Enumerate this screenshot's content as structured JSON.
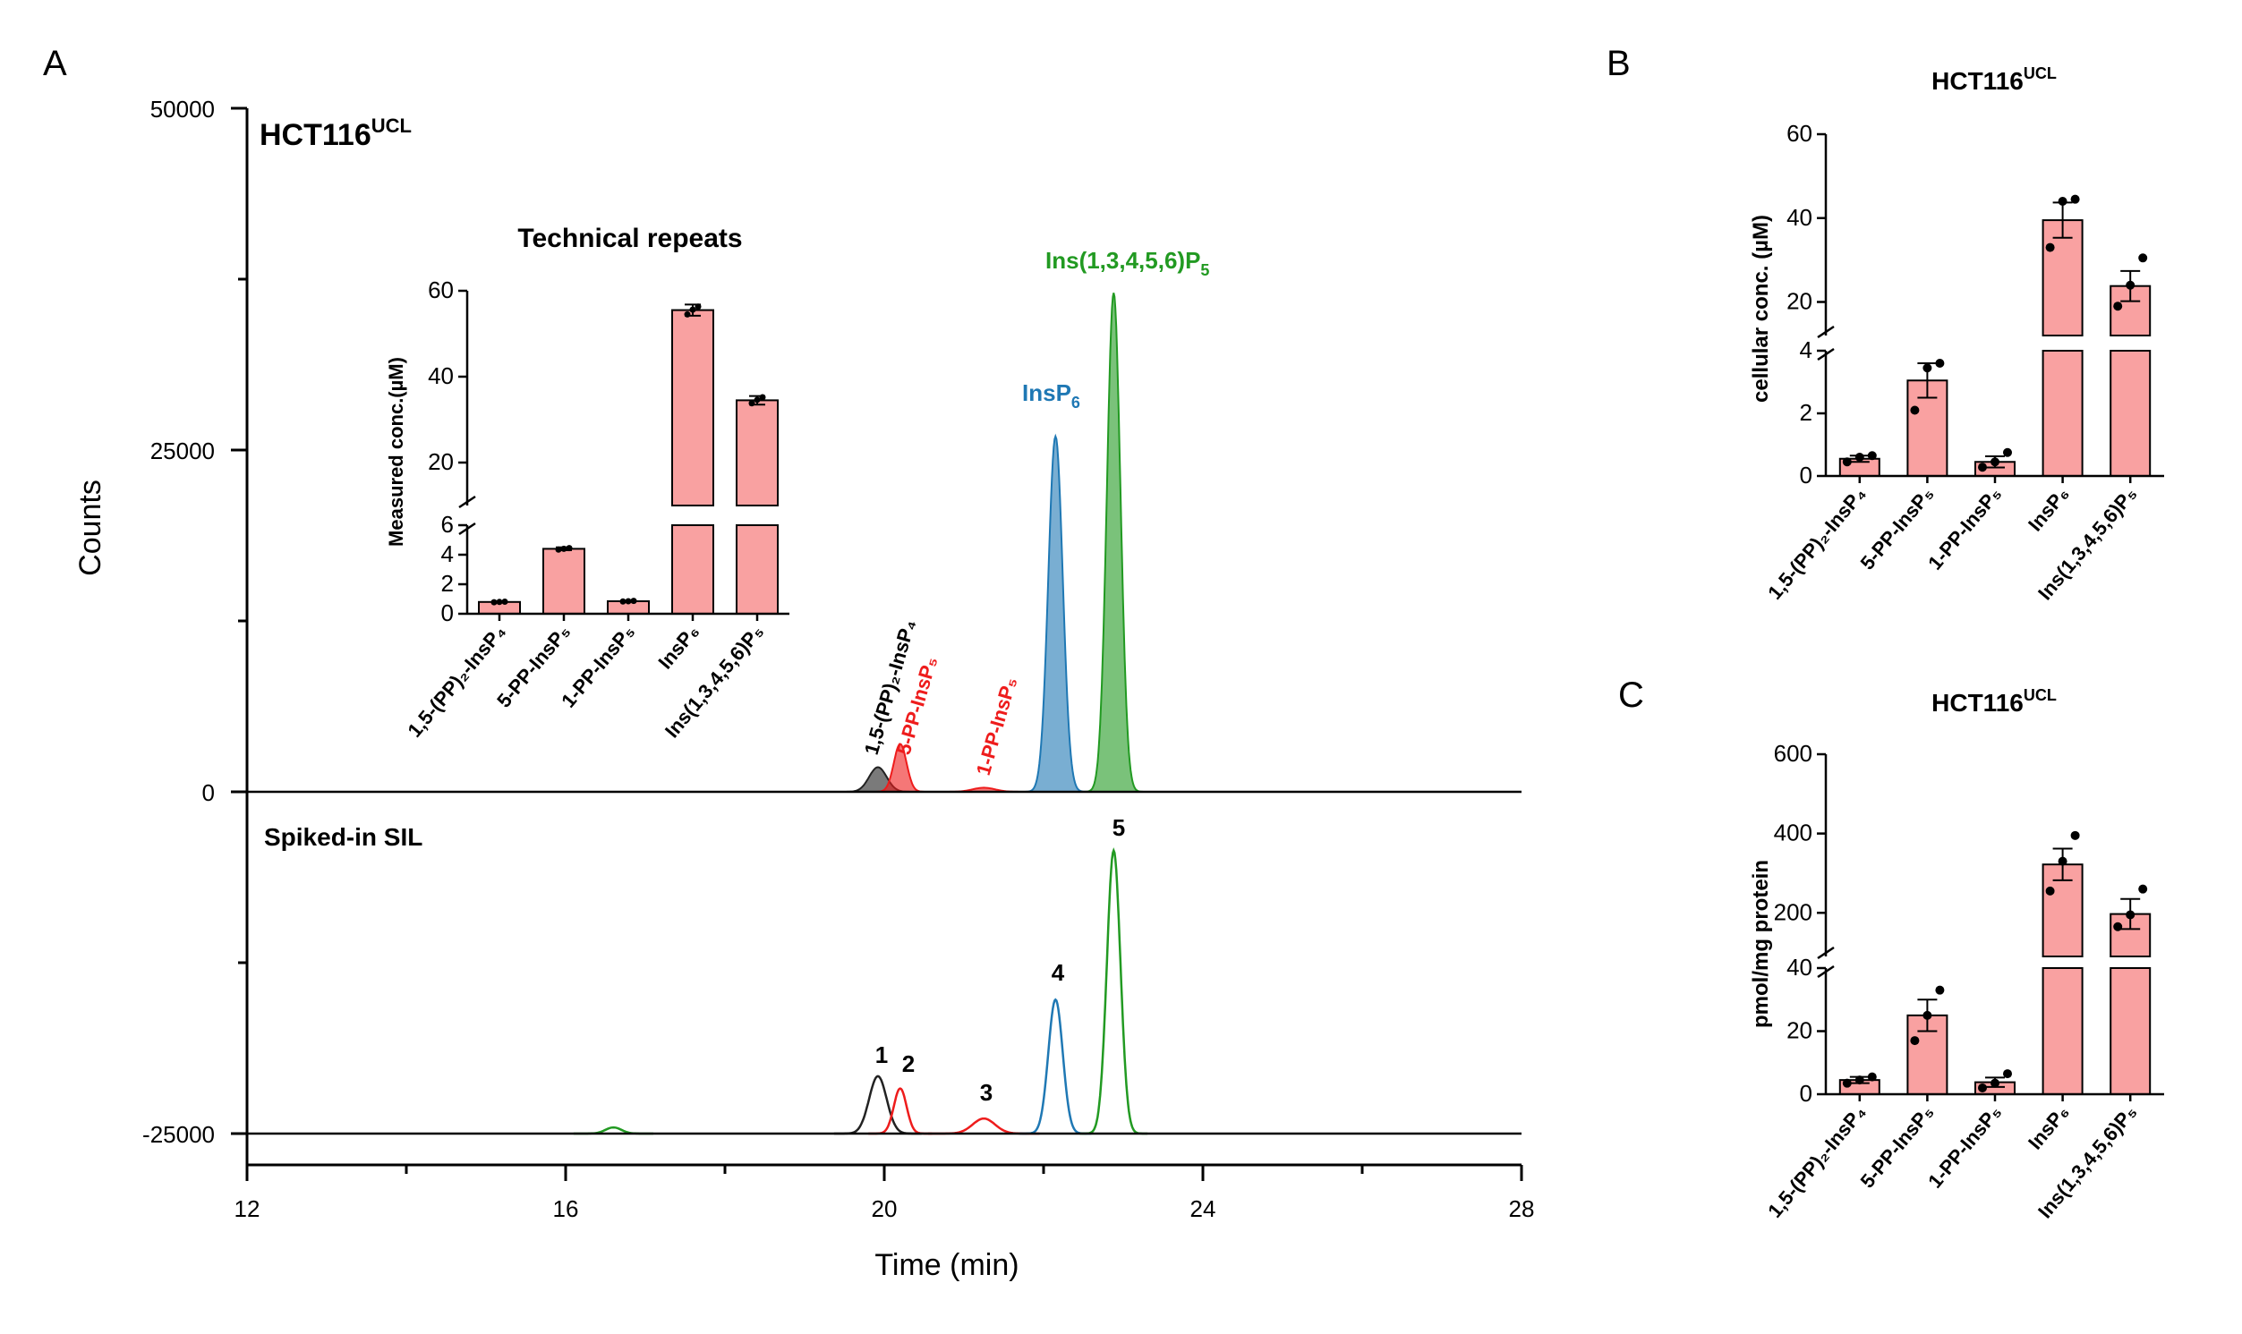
{
  "panel_labels": {
    "a": "A",
    "b": "B",
    "c": "C"
  },
  "colors": {
    "bar_fill": "#f9a1a1",
    "peak_1": "#222222",
    "peak_2": "#ee1c1c",
    "peak_3": "#ee1c1c",
    "peak_4": "#1f78b4",
    "peak_5": "#229a22"
  },
  "chart_data": [
    {
      "id": "A",
      "type": "line",
      "title": "HCT116",
      "title_sup": "UCL",
      "xlabel": "Time (min)",
      "ylabel": "Counts",
      "xlim": [
        12,
        28
      ],
      "ylim": [
        -25000,
        50000
      ],
      "xticks": [
        "12",
        "16",
        "20",
        "24",
        "28"
      ],
      "yticks": [
        "50000",
        "25000",
        "0",
        "-25000"
      ],
      "lower_trace_label": "Spiked-in SIL",
      "peak_labels": {
        "p1": "1,5-(PP)₂-InsP₄",
        "p2": "5-PP-InsP₅",
        "p3": "1-PP-InsP₅",
        "p4_main": "InsP",
        "p4_sub": "6",
        "p5_main": "Ins(1,3,4,5,6)P",
        "p5_sub": "5"
      },
      "sil_peak_numbers": [
        "1",
        "2",
        "3",
        "4",
        "5"
      ],
      "series": [
        {
          "name": "1,5-(PP)2-InsP4",
          "color": "#222222",
          "peak_time": 19.92,
          "sample_height": 1800,
          "sil_height": 4200,
          "width": 0.11
        },
        {
          "name": "5-PP-InsP5",
          "color": "#ee1c1c",
          "peak_time": 20.2,
          "sample_height": 3500,
          "sil_height": 3300,
          "width": 0.08
        },
        {
          "name": "1-PP-InsP5",
          "color": "#ee1c1c",
          "peak_time": 21.25,
          "sample_height": 300,
          "sil_height": 1100,
          "width": 0.14
        },
        {
          "name": "InsP6",
          "color": "#1f78b4",
          "peak_time": 22.15,
          "sample_height": 26000,
          "sil_height": 9800,
          "width": 0.09
        },
        {
          "name": "Ins(1,3,4,5,6)P5",
          "color": "#229a22",
          "peak_time": 22.88,
          "sample_height": 36500,
          "sil_height": 20700,
          "width": 0.085
        },
        {
          "name": "minor",
          "color": "#229a22",
          "peak_time": 16.6,
          "sample_height": 0,
          "sil_height": 450,
          "width": 0.1
        }
      ]
    },
    {
      "id": "A-inset",
      "type": "bar",
      "title": "Technical repeats",
      "ylabel": "Measured conc.(µM)",
      "categories": [
        "1,5-(PP)₂-InsP₄",
        "5-PP-InsP₅",
        "1-PP-InsP₅",
        "InsP₆",
        "Ins(1,3,4,5,6)P₅"
      ],
      "values": [
        0.8,
        4.4,
        0.85,
        55.5,
        34.5
      ],
      "errors": [
        0.05,
        0.1,
        0.05,
        1.3,
        1.0
      ],
      "points": [
        [
          0.78,
          0.8,
          0.82
        ],
        [
          4.35,
          4.4,
          4.45
        ],
        [
          0.83,
          0.85,
          0.87
        ],
        [
          54.5,
          55.6,
          56.3
        ],
        [
          33.8,
          34.6,
          35.2
        ]
      ],
      "lower_ylim": [
        0,
        6
      ],
      "lower_yticks": [
        "0",
        "2",
        "4",
        "6"
      ],
      "upper_ylim": [
        10,
        60
      ],
      "upper_yticks": [
        "20",
        "40",
        "60"
      ]
    },
    {
      "id": "B",
      "type": "bar",
      "title": "HCT116",
      "title_sup": "UCL",
      "ylabel": "cellular conc. (µM)",
      "categories": [
        "1,5-(PP)₂-InsP₄",
        "5-PP-InsP₅",
        "1-PP-InsP₅",
        "InsP₆",
        "Ins(1,3,4,5,6)P₅"
      ],
      "values": [
        0.55,
        3.05,
        0.45,
        39.5,
        23.8
      ],
      "errors": [
        0.1,
        0.55,
        0.18,
        4.2,
        3.6
      ],
      "points": [
        [
          0.45,
          0.6,
          0.65
        ],
        [
          2.1,
          3.45,
          3.6
        ],
        [
          0.28,
          0.45,
          0.75
        ],
        [
          33,
          44,
          44.5
        ],
        [
          19,
          24,
          30.5
        ]
      ],
      "lower_ylim": [
        0,
        4
      ],
      "lower_yticks": [
        "0",
        "2",
        "4"
      ],
      "upper_ylim": [
        12,
        60
      ],
      "upper_yticks": [
        "20",
        "40",
        "60"
      ]
    },
    {
      "id": "C",
      "type": "bar",
      "title": "HCT116",
      "title_sup": "UCL",
      "ylabel": "pmol/mg protein",
      "categories": [
        "1,5-(PP)₂-InsP₄",
        "5-PP-InsP₅",
        "1-PP-InsP₅",
        "InsP₆",
        "Ins(1,3,4,5,6)P₅"
      ],
      "values": [
        4.5,
        25,
        3.8,
        322,
        197
      ],
      "errors": [
        1.0,
        5.0,
        1.5,
        40,
        38
      ],
      "points": [
        [
          3.5,
          4.5,
          5.5
        ],
        [
          17,
          25,
          33
        ],
        [
          2,
          3.5,
          6.5
        ],
        [
          255,
          330,
          395
        ],
        [
          165,
          195,
          260
        ]
      ],
      "lower_ylim": [
        0,
        40
      ],
      "lower_yticks": [
        "0",
        "20",
        "40"
      ],
      "upper_ylim": [
        90,
        600
      ],
      "upper_yticks": [
        "200",
        "400",
        "600"
      ]
    }
  ]
}
